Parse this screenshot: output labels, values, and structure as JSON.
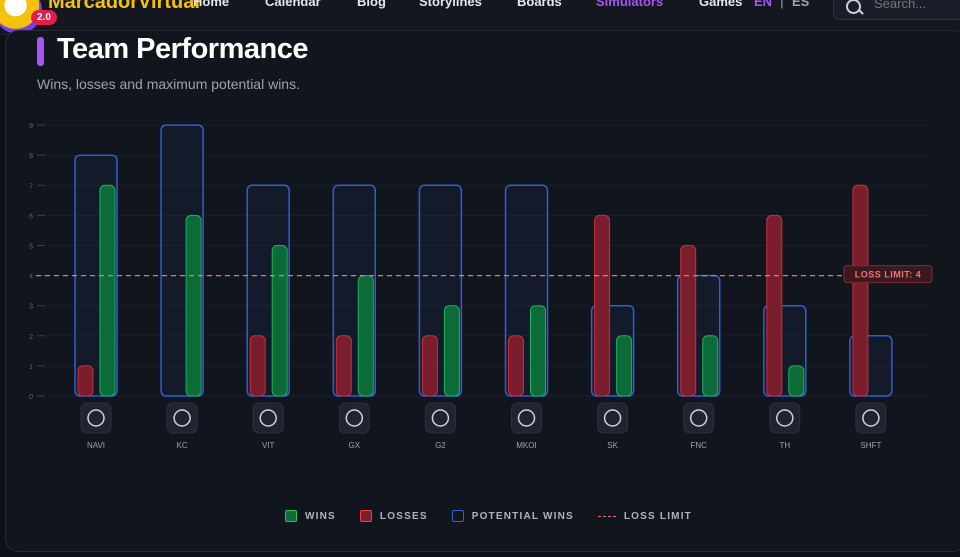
{
  "nav": {
    "brand": "MarcadorVirtual",
    "version": "2.0",
    "links": [
      "Home",
      "Calendar",
      "Blog",
      "Storylines",
      "Boards",
      "Simulators",
      "Games"
    ],
    "active_link": "Simulators",
    "lang_en": "EN",
    "lang_sep": "|",
    "lang_es": "ES",
    "search_placeholder": "Search..."
  },
  "card": {
    "title": "Team Performance",
    "subtitle": "Wins, losses and maximum potential wins."
  },
  "colors": {
    "accent": "#a855f7",
    "wins": "#22c55e",
    "losses": "#ef4444",
    "potential": "#2f5fd0",
    "loss_limit": "#f87171"
  },
  "chart_data": {
    "type": "bar",
    "categories": [
      "NAVI",
      "KC",
      "VIT",
      "GX",
      "G2",
      "MKOI",
      "SK",
      "FNC",
      "TH",
      "SHFT"
    ],
    "series": [
      {
        "name": "Wins",
        "values": [
          7,
          6,
          5,
          4,
          3,
          3,
          2,
          2,
          1,
          0
        ]
      },
      {
        "name": "Losses",
        "values": [
          1,
          0,
          2,
          2,
          2,
          2,
          6,
          5,
          6,
          7
        ]
      },
      {
        "name": "Potential Wins",
        "values": [
          8,
          9,
          7,
          7,
          7,
          7,
          3,
          4,
          3,
          2
        ]
      }
    ],
    "y_ticks": [
      0,
      1,
      2,
      3,
      4,
      5,
      6,
      7,
      8,
      9
    ],
    "ylim": [
      0,
      9
    ],
    "grid": true,
    "reference_line": {
      "label": "LOSS LIMIT: 4",
      "value": 4
    },
    "team_icons": [
      "navi-logo-icon",
      "kc-logo-icon",
      "vit-logo-icon",
      "gx-logo-icon",
      "g2-logo-icon",
      "mkoi-logo-icon",
      "sk-logo-icon",
      "fnc-logo-icon",
      "th-logo-icon",
      "shft-logo-icon"
    ],
    "legend": {
      "position": "bottom",
      "items": [
        "WINS",
        "LOSSES",
        "POTENTIAL WINS",
        "LOSS LIMIT"
      ]
    }
  }
}
